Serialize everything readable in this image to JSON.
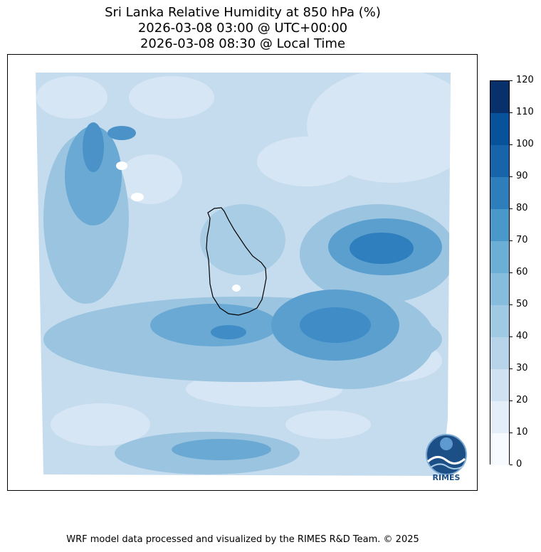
{
  "title": {
    "line1": "Sri Lanka Relative Humidity at 850 hPa (%)",
    "line2": "2026-03-08 03:00 @ UTC+00:00",
    "line3": "2026-03-08 08:30 @ Local Time"
  },
  "colorbar": {
    "ticks": [
      "0",
      "10",
      "20",
      "30",
      "40",
      "50",
      "60",
      "70",
      "80",
      "90",
      "100",
      "110",
      "120"
    ],
    "colors": [
      "#f7fbff",
      "#e3eef9",
      "#d0e1f2",
      "#b7d4ea",
      "#94c4df",
      "#6baed6",
      "#4a98c9",
      "#2e7ebc",
      "#1764ab",
      "#084a91",
      "#08306b",
      "#08306b"
    ]
  },
  "logo": {
    "text": "RIMES"
  },
  "footer": "WRF model data processed and visualized by the RIMES R&D Team. © 2025"
}
